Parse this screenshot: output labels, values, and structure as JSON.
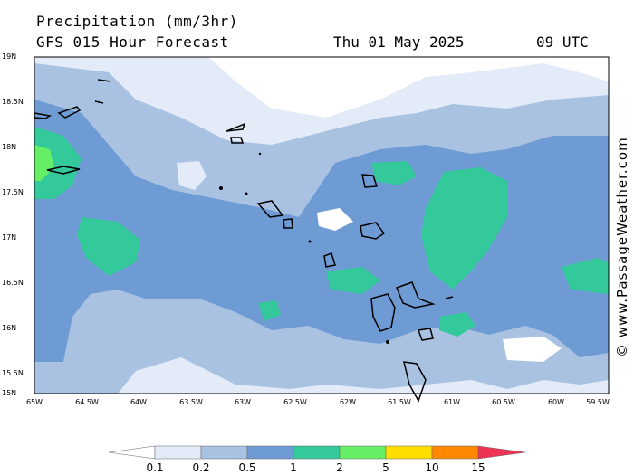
{
  "header": {
    "title": "Precipitation (mm/3hr)",
    "subtitle": "GFS 015 Hour Forecast",
    "date": "Thu 01 May 2025",
    "time": "09 UTC"
  },
  "credit": "© www.PassageWeather.com",
  "map": {
    "lat_labels": [
      "19N",
      "18.5N",
      "18N",
      "17.5N",
      "17N",
      "16.5N",
      "16N",
      "15.5N",
      "15N"
    ],
    "lon_labels": [
      "65W",
      "64.5W",
      "64W",
      "63.5W",
      "63W",
      "62.5W",
      "62W",
      "61.5W",
      "61W",
      "60.5W",
      "60W",
      "59.5W"
    ],
    "colors": {
      "land": "#000000",
      "none": "#ffffff"
    }
  },
  "legend": {
    "labels": [
      "0.1",
      "0.2",
      "0.5",
      "1",
      "2",
      "5",
      "10",
      "15"
    ],
    "colors": [
      "#ffffff",
      "#e2ebf7",
      "#a9c2e2",
      "#6f9bd4",
      "#33c99a",
      "#66ee66",
      "#ffdd00",
      "#ff8800",
      "#ee3355"
    ]
  }
}
